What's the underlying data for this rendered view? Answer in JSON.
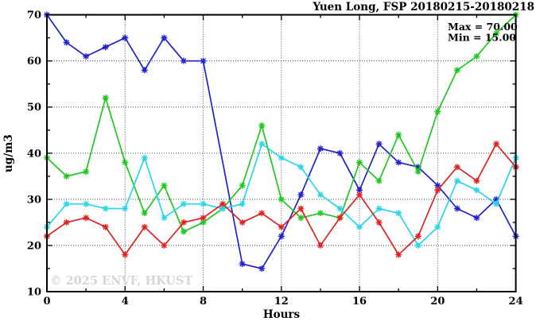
{
  "header": {
    "title": "Yuen Long, FSP 20180215-20180218"
  },
  "chart_data": {
    "type": "line",
    "title": "Yuen Long, FSP 20180215-20180218",
    "xlabel": "Hours",
    "ylabel": "ug/m3",
    "xlim": [
      0,
      24
    ],
    "ylim": [
      10,
      70
    ],
    "xticks": [
      0,
      4,
      8,
      12,
      16,
      20,
      24
    ],
    "yticks": [
      10,
      20,
      30,
      40,
      50,
      60,
      70
    ],
    "grid": true,
    "legend": "none",
    "x": [
      0,
      1,
      2,
      3,
      4,
      5,
      6,
      7,
      8,
      9,
      10,
      11,
      12,
      13,
      14,
      15,
      16,
      17,
      18,
      19,
      20,
      21,
      22,
      23,
      24
    ],
    "series": [
      {
        "name": "series-blue",
        "color": "#2222cc",
        "values": [
          70,
          64,
          61,
          63,
          65,
          58,
          65,
          60,
          60,
          null,
          16,
          15,
          22,
          31,
          41,
          40,
          32,
          42,
          38,
          37,
          33,
          28,
          26,
          30,
          22
        ]
      },
      {
        "name": "series-green",
        "color": "#1ec81e",
        "values": [
          39,
          35,
          36,
          52,
          38,
          27,
          33,
          23,
          25,
          28,
          33,
          46,
          30,
          26,
          27,
          26,
          38,
          34,
          44,
          36,
          49,
          58,
          61,
          66,
          70
        ]
      },
      {
        "name": "series-cyan",
        "color": "#2ad6e6",
        "values": [
          24,
          29,
          29,
          28,
          28,
          39,
          26,
          29,
          29,
          28,
          29,
          42,
          39,
          37,
          31,
          28,
          24,
          28,
          27,
          20,
          24,
          34,
          32,
          29,
          39
        ]
      },
      {
        "name": "series-red",
        "color": "#dd2222",
        "values": [
          22,
          25,
          26,
          24,
          18,
          24,
          20,
          25,
          26,
          29,
          25,
          27,
          24,
          28,
          20,
          26,
          31,
          25,
          18,
          22,
          32,
          37,
          34,
          42,
          37
        ]
      }
    ],
    "annotations": {
      "max_label": "Max = 70.00",
      "min_label": "Min = 15.00"
    },
    "watermark": "© 2025 ENVF, HKUST",
    "grid_color": "#4a4a4a",
    "axis_color": "#000000"
  }
}
